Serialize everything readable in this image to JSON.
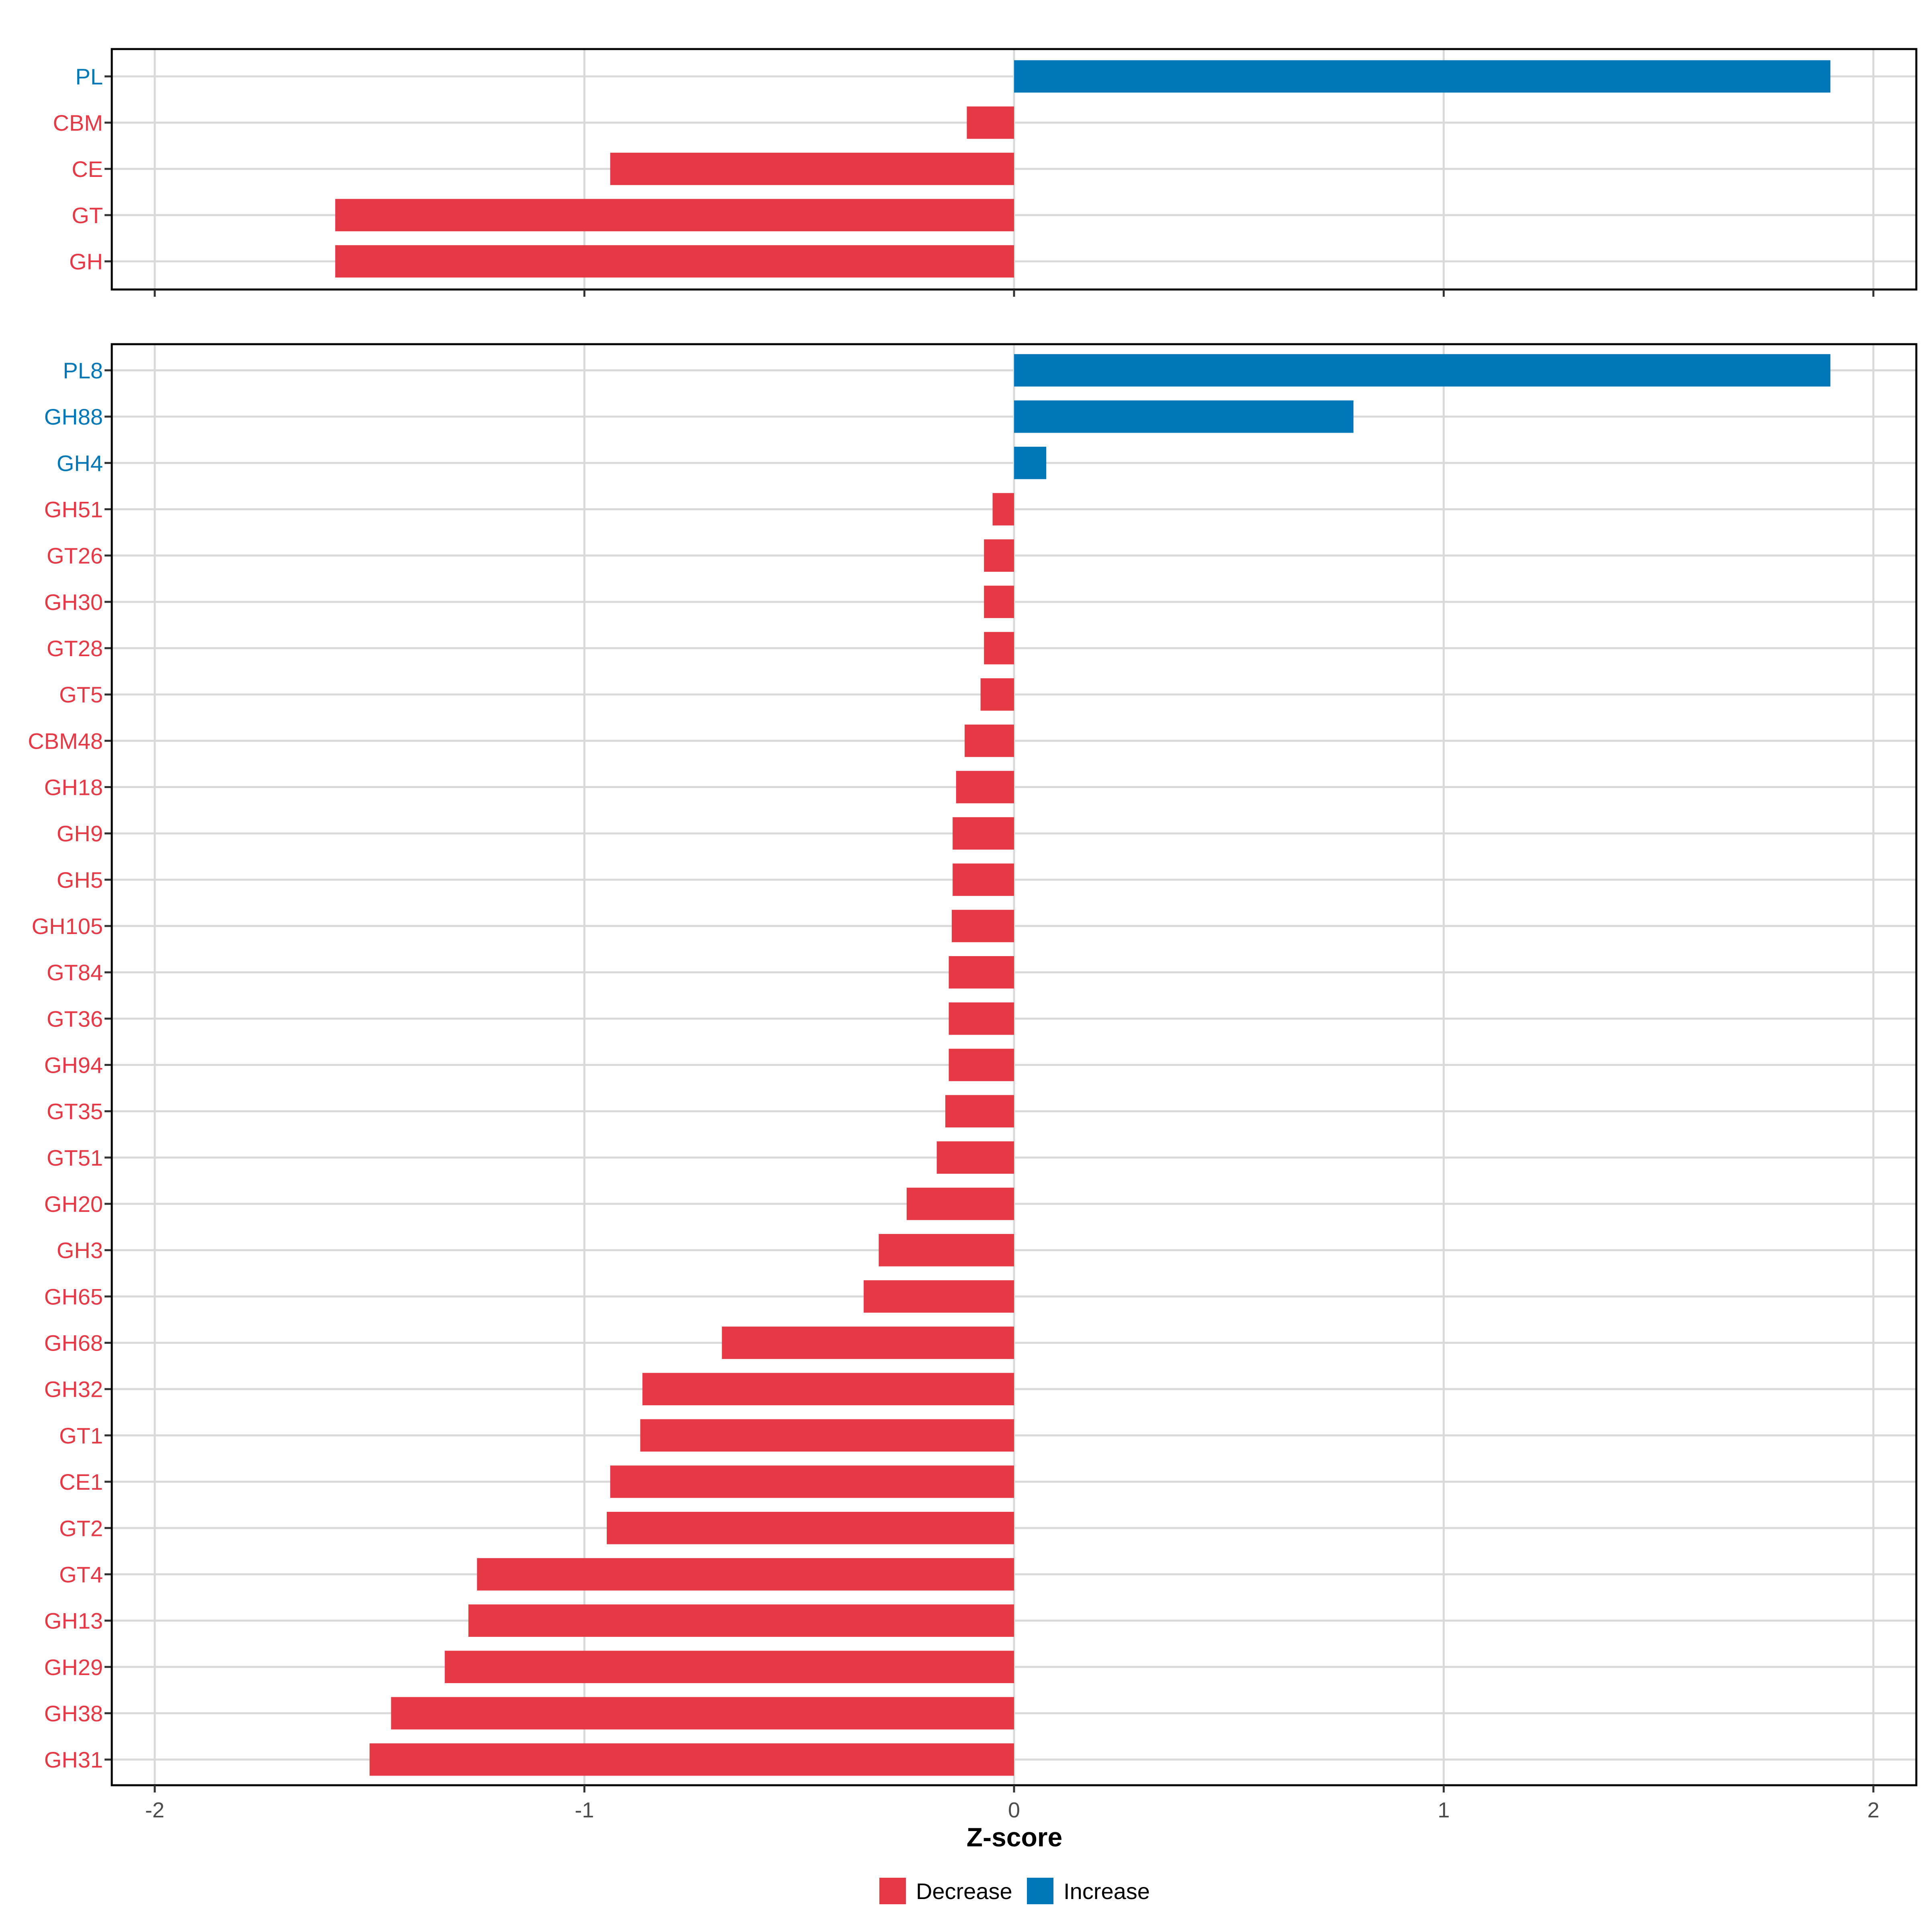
{
  "colors": {
    "decrease": "#e63946",
    "increase": "#0077b6",
    "grid": "#d9d9d9",
    "panel_border": "#000000"
  },
  "chart_data": [
    {
      "type": "bar",
      "orientation": "horizontal",
      "panel": "top",
      "xlim": [
        -2.1,
        2.1
      ],
      "ticks": [
        -2,
        -1,
        0,
        1,
        2
      ],
      "categories": [
        "PL",
        "CBM",
        "CE",
        "GT",
        "GH"
      ],
      "values": [
        1.9,
        -0.11,
        -0.94,
        -1.58,
        -1.58
      ],
      "direction": [
        "Increase",
        "Decrease",
        "Decrease",
        "Decrease",
        "Decrease"
      ]
    },
    {
      "type": "bar",
      "orientation": "horizontal",
      "panel": "bottom",
      "xlim": [
        -2.1,
        2.1
      ],
      "ticks": [
        -2,
        -1,
        0,
        1,
        2
      ],
      "tick_labels": [
        "-2",
        "-1",
        "0",
        "1",
        "2"
      ],
      "xlabel": "Z-score",
      "categories": [
        "PL8",
        "GH88",
        "GH4",
        "GH51",
        "GT26",
        "GH30",
        "GT28",
        "GT5",
        "CBM48",
        "GH18",
        "GH9",
        "GH5",
        "GH105",
        "GT84",
        "GT36",
        "GH94",
        "GT35",
        "GT51",
        "GH20",
        "GH3",
        "GH65",
        "GH68",
        "GH32",
        "GT1",
        "CE1",
        "GT2",
        "GT4",
        "GH13",
        "GH29",
        "GH38",
        "GH31"
      ],
      "values": [
        1.9,
        0.79,
        0.075,
        -0.05,
        -0.07,
        -0.07,
        -0.07,
        -0.078,
        -0.115,
        -0.135,
        -0.143,
        -0.143,
        -0.145,
        -0.152,
        -0.152,
        -0.152,
        -0.16,
        -0.18,
        -0.25,
        -0.315,
        -0.35,
        -0.68,
        -0.865,
        -0.87,
        -0.94,
        -0.948,
        -1.25,
        -1.27,
        -1.325,
        -1.45,
        -1.5
      ],
      "direction": [
        "Increase",
        "Increase",
        "Increase",
        "Decrease",
        "Decrease",
        "Decrease",
        "Decrease",
        "Decrease",
        "Decrease",
        "Decrease",
        "Decrease",
        "Decrease",
        "Decrease",
        "Decrease",
        "Decrease",
        "Decrease",
        "Decrease",
        "Decrease",
        "Decrease",
        "Decrease",
        "Decrease",
        "Decrease",
        "Decrease",
        "Decrease",
        "Decrease",
        "Decrease",
        "Decrease",
        "Decrease",
        "Decrease",
        "Decrease",
        "Decrease"
      ]
    }
  ],
  "legend": {
    "position": "bottom",
    "items": [
      {
        "label": "Decrease",
        "key": "decrease"
      },
      {
        "label": "Increase",
        "key": "increase"
      }
    ]
  }
}
